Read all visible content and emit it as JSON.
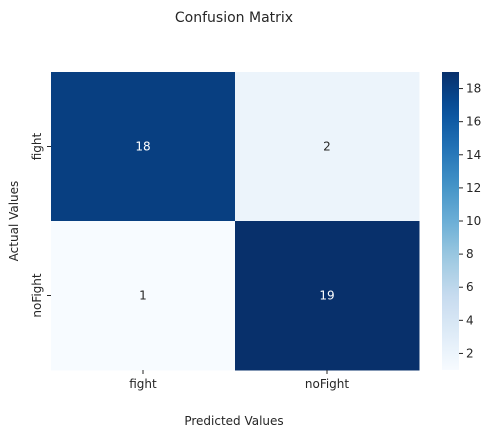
{
  "chart_data": {
    "type": "heatmap",
    "title": "Confusion Matrix",
    "xlabel": "Predicted Values",
    "ylabel": "Actual Values",
    "x_categories": [
      "fight",
      "noFight"
    ],
    "y_categories": [
      "fight",
      "noFight"
    ],
    "values": [
      [
        18,
        2
      ],
      [
        1,
        19
      ]
    ],
    "colorbar": {
      "min": 1,
      "max": 19,
      "ticks": [
        2,
        4,
        6,
        8,
        10,
        12,
        14,
        16,
        18
      ],
      "colormap": "Blues",
      "low_color": "#f7fbff",
      "high_color": "#08306b"
    },
    "annotation_colors": {
      "on_dark": "#ffffff",
      "on_light": "#262626"
    }
  }
}
